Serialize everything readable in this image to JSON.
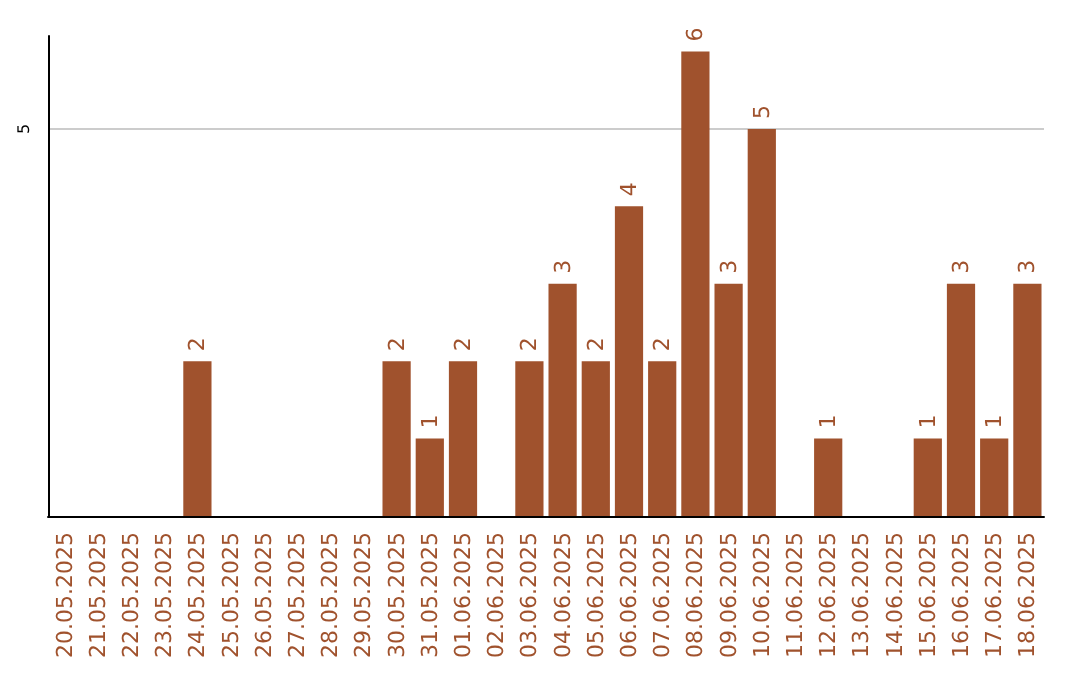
{
  "chart_data": {
    "type": "bar",
    "categories": [
      "20.05.2025",
      "21.05.2025",
      "22.05.2025",
      "23.05.2025",
      "24.05.2025",
      "25.05.2025",
      "26.05.2025",
      "27.05.2025",
      "28.05.2025",
      "29.05.2025",
      "30.05.2025",
      "31.05.2025",
      "01.06.2025",
      "02.06.2025",
      "03.06.2025",
      "04.06.2025",
      "05.06.2025",
      "06.06.2025",
      "07.06.2025",
      "08.06.2025",
      "09.06.2025",
      "10.06.2025",
      "11.06.2025",
      "12.06.2025",
      "13.06.2025",
      "14.06.2025",
      "15.06.2025",
      "16.06.2025",
      "17.06.2025",
      "18.06.2025"
    ],
    "values": [
      0,
      0,
      0,
      0,
      2,
      0,
      0,
      0,
      0,
      0,
      2,
      1,
      2,
      0,
      2,
      3,
      2,
      4,
      2,
      6,
      3,
      5,
      0,
      1,
      0,
      0,
      1,
      3,
      1,
      3
    ],
    "value_labels": [
      null,
      null,
      null,
      null,
      "2",
      null,
      null,
      null,
      null,
      null,
      "2",
      "1",
      "2",
      null,
      "2",
      "3",
      "2",
      "4",
      "2",
      "6",
      "3",
      "5",
      null,
      "1",
      null,
      null,
      "1",
      "3",
      "1",
      "3"
    ],
    "color": "#a0522d",
    "ylim": [
      0,
      6.2
    ],
    "yticks": [
      5
    ],
    "grid": "y"
  }
}
